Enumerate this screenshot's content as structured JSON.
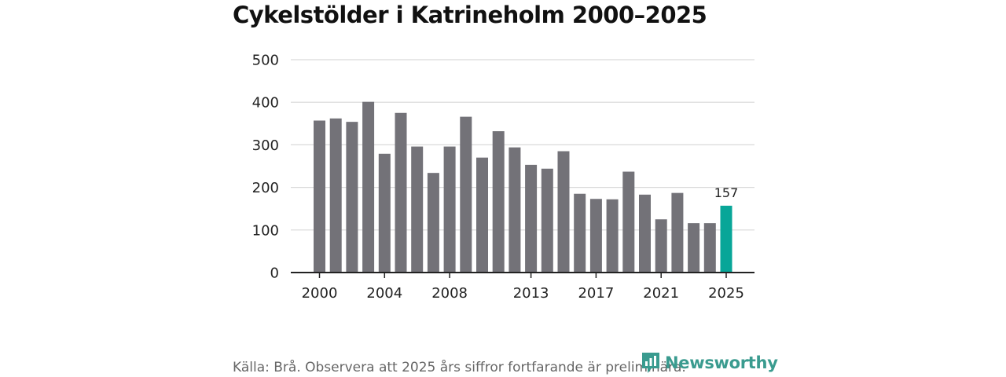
{
  "chart_data": {
    "type": "bar",
    "title": "Cykelstölder i Katrineholm 2000–2025",
    "xlabel": "",
    "ylabel": "",
    "ylim": [
      0,
      500
    ],
    "yticks": [
      0,
      100,
      200,
      300,
      400,
      500
    ],
    "xticks": [
      "2000",
      "2004",
      "2008",
      "2013",
      "2017",
      "2021",
      "2025"
    ],
    "categories": [
      "2000",
      "2001",
      "2002",
      "2003",
      "2004",
      "2005",
      "2006",
      "2007",
      "2008",
      "2009",
      "2010",
      "2011",
      "2012",
      "2013",
      "2014",
      "2015",
      "2016",
      "2017",
      "2018",
      "2019",
      "2020",
      "2021",
      "2022",
      "2023",
      "2024",
      "2025"
    ],
    "values": [
      357,
      362,
      354,
      401,
      279,
      375,
      296,
      234,
      296,
      366,
      270,
      332,
      294,
      253,
      244,
      285,
      185,
      173,
      172,
      237,
      183,
      125,
      187,
      116,
      116,
      157
    ],
    "highlight_index": 25,
    "highlight_label": "157",
    "grid": true,
    "colors": {
      "bar": "#737278",
      "highlight": "#08a698",
      "grid": "#d9d9d9",
      "axis": "#222222",
      "tick_text": "#222222"
    }
  },
  "footer": {
    "source": "Källa: Brå. Observera att 2025 års siffror fortfarande är preliminära."
  },
  "logo": {
    "text": "Newsworthy",
    "icon": "newsworthy-logo-icon",
    "color": "#3a9b8f"
  }
}
